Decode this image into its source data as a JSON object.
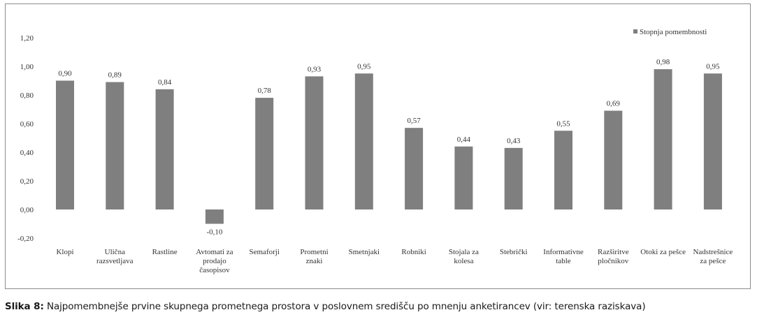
{
  "caption": {
    "number": "Slika 8:",
    "text": "Najpomembnejše prvine skupnega prometnega prostora v poslovnem središču po mnenju anketirancev (vir: terenska raziskava)"
  },
  "colors": {
    "bar": "#7f7f7f",
    "legend_swatch": "#7f7f7f",
    "frame": "#8c8c8c"
  },
  "chart_data": {
    "type": "bar",
    "title": "",
    "xlabel": "",
    "ylabel": "",
    "ylim": [
      -0.2,
      1.2
    ],
    "grid": false,
    "legend_position": "top-right",
    "y_ticks": [
      {
        "value": -0.2,
        "label": "-0,20"
      },
      {
        "value": 0.0,
        "label": "0,00"
      },
      {
        "value": 0.2,
        "label": "0,20"
      },
      {
        "value": 0.4,
        "label": "0,40"
      },
      {
        "value": 0.6,
        "label": "0,60"
      },
      {
        "value": 0.8,
        "label": "0,80"
      },
      {
        "value": 1.0,
        "label": "1,00"
      },
      {
        "value": 1.2,
        "label": "1,20"
      }
    ],
    "categories": [
      [
        "Klopi"
      ],
      [
        "Ulična",
        "razsvetljava"
      ],
      [
        "Rastline"
      ],
      [
        "Avtomati za",
        "prodajo",
        "časopisov"
      ],
      [
        "Semaforji"
      ],
      [
        "Prometni",
        "znaki"
      ],
      [
        "Smetnjaki"
      ],
      [
        "Robniki"
      ],
      [
        "Stojala za",
        "kolesa"
      ],
      [
        "Stebrički"
      ],
      [
        "Informativne",
        "table"
      ],
      [
        "Razširitve",
        "pločnikov"
      ],
      [
        "Otoki za pešce"
      ],
      [
        "Nadstrešnice",
        "za pešce"
      ]
    ],
    "series": [
      {
        "name": "Stopnja pomembnosti",
        "values": [
          0.9,
          0.89,
          0.84,
          -0.1,
          0.78,
          0.93,
          0.95,
          0.57,
          0.44,
          0.43,
          0.55,
          0.69,
          0.98,
          0.95
        ],
        "labels": [
          "0,90",
          "0,89",
          "0,84",
          "-0,10",
          "0,78",
          "0,93",
          "0,95",
          "0,57",
          "0,44",
          "0,43",
          "0,55",
          "0,69",
          "0,98",
          "0,95"
        ]
      }
    ]
  }
}
